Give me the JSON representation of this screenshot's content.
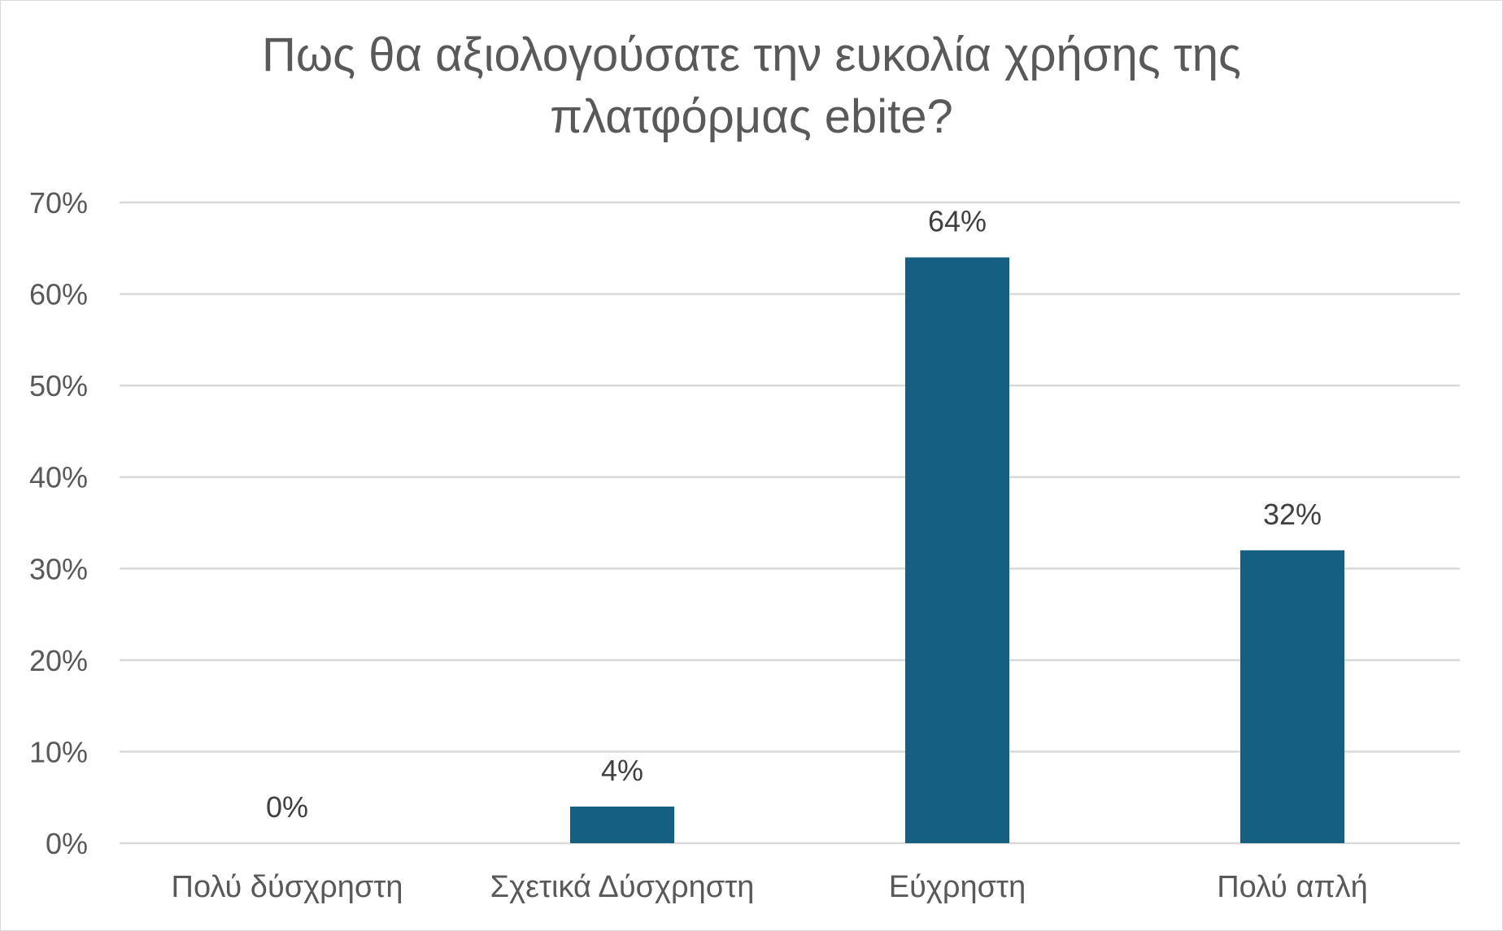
{
  "chart_data": {
    "type": "bar",
    "title_lines": [
      "Πως θα αξιολογούσατε την ευκολία χρήσης της",
      "πλατφόρμας ebite?"
    ],
    "categories": [
      "Πολύ δύσχρηστη",
      "Σχετικά Δύσχρηστη",
      "Εύχρηστη",
      "Πολύ απλή"
    ],
    "values": [
      0,
      4,
      64,
      32
    ],
    "data_labels": [
      "0%",
      "4%",
      "64%",
      "32%"
    ],
    "ylim": [
      0,
      70
    ],
    "yticks": [
      0,
      10,
      20,
      30,
      40,
      50,
      60,
      70
    ],
    "ytick_labels": [
      "0%",
      "10%",
      "20%",
      "30%",
      "40%",
      "50%",
      "60%",
      "70%"
    ],
    "xlabel": "",
    "ylabel": "",
    "grid": true,
    "legend": "none",
    "bar_color": "#156082",
    "gridline_color": "#d9d9d9"
  }
}
